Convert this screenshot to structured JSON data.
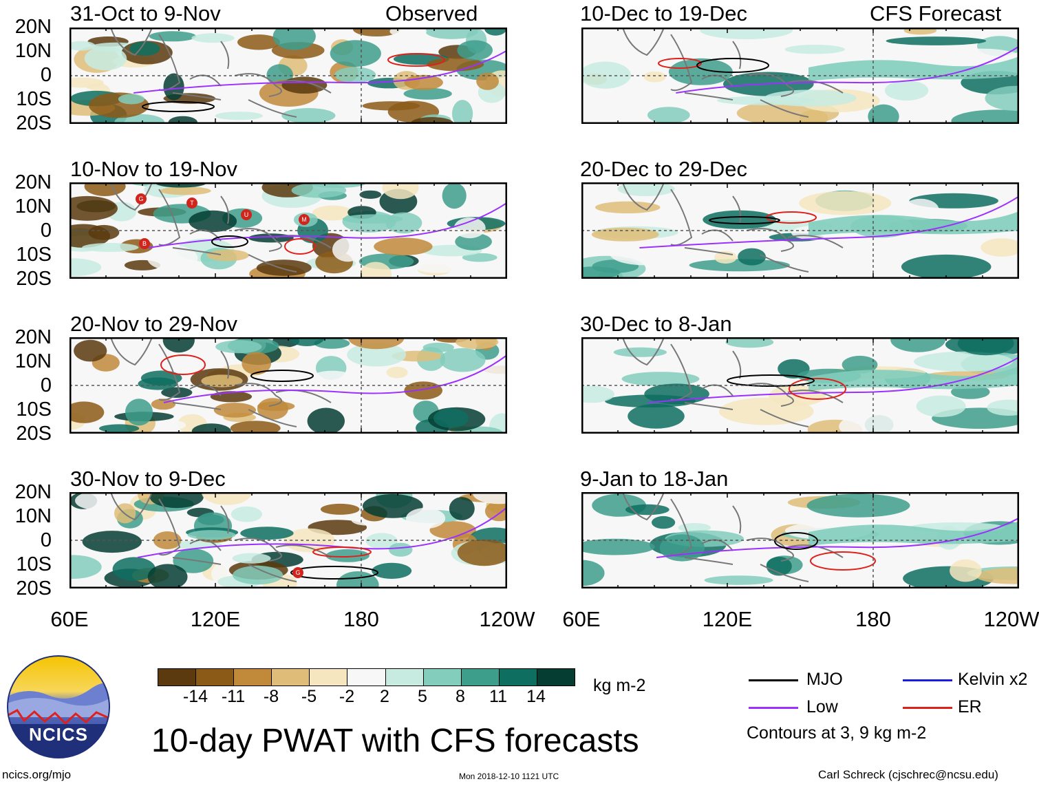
{
  "header": {
    "observed_label": "Observed",
    "forecast_label": "CFS Forecast"
  },
  "panels_left": [
    {
      "title": "31-Oct to 9-Nov"
    },
    {
      "title": "10-Nov to 19-Nov"
    },
    {
      "title": "20-Nov to 29-Nov"
    },
    {
      "title": "30-Nov to 9-Dec"
    }
  ],
  "panels_right": [
    {
      "title": "10-Dec to 19-Dec"
    },
    {
      "title": "20-Dec to 29-Dec"
    },
    {
      "title": "30-Dec to 8-Jan"
    },
    {
      "title": "9-Jan to 18-Jan"
    }
  ],
  "lat_labels": [
    "20N",
    "10N",
    "0",
    "10S",
    "20S"
  ],
  "lon_labels": [
    "60E",
    "120E",
    "180",
    "120W"
  ],
  "storm_markers": [
    "G",
    "T",
    "U",
    "M",
    "B",
    "G"
  ],
  "colorbar": {
    "colors": [
      "#5a3a0e",
      "#8c5a17",
      "#c18a3b",
      "#dfbd78",
      "#f5e6bf",
      "#f7f7f7",
      "#c7ebe0",
      "#82cdbc",
      "#3e9e8c",
      "#0e6e60",
      "#053d33"
    ],
    "ticks": [
      "-14",
      "-11",
      "-8",
      "-5",
      "-2",
      "2",
      "5",
      "8",
      "11",
      "14"
    ],
    "units": "kg m-2"
  },
  "legend": {
    "items": [
      {
        "label": "MJO",
        "color": "#000000"
      },
      {
        "label": "Kelvin x2",
        "color": "#1b1bdc"
      },
      {
        "label": "Low",
        "color": "#9b30ff"
      },
      {
        "label": "ER",
        "color": "#e0201a"
      }
    ],
    "note": "Contours at 3, 9 kg m-2"
  },
  "logo": {
    "text": "NCICS"
  },
  "main_title": "10-day PWAT with CFS forecasts",
  "footer": {
    "url": "ncics.org/mjo",
    "timestamp": "Mon 2018-12-10 1121 UTC",
    "credit": "Carl Schreck (cjschrec@ncsu.edu)"
  }
}
